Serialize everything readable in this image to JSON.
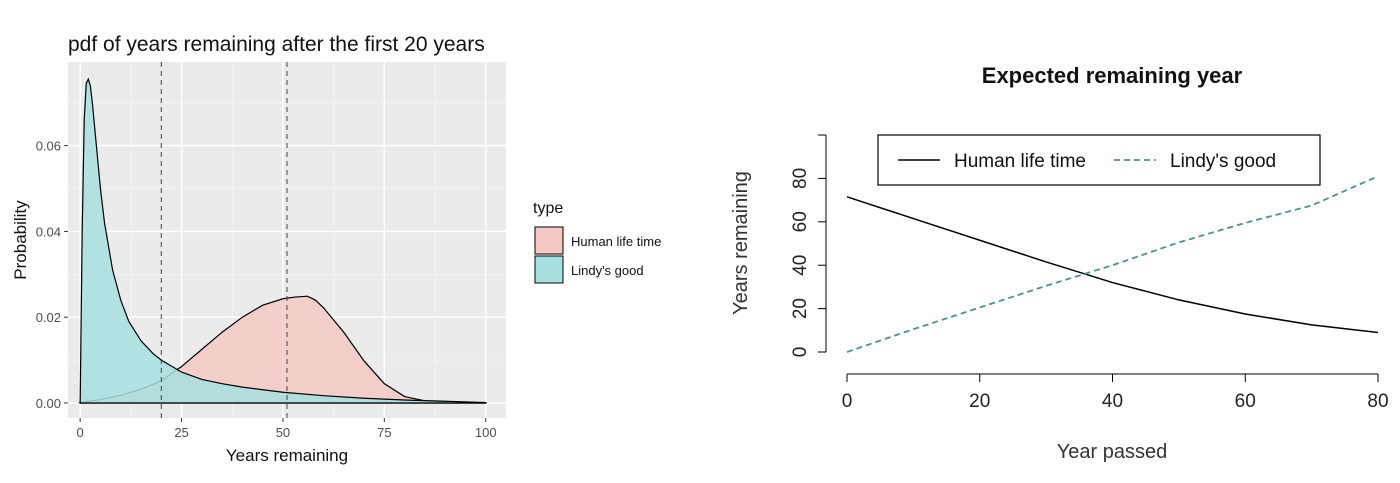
{
  "chart_data": [
    {
      "type": "area",
      "title": "pdf of years remaining after the first 20 years",
      "xlabel": "Years remaining",
      "ylabel": "Probability",
      "xlim": [
        -3,
        105
      ],
      "ylim": [
        -0.0035,
        0.0795
      ],
      "x_ticks": [
        0,
        25,
        50,
        75,
        100
      ],
      "y_ticks": [
        0.0,
        0.02,
        0.04,
        0.06
      ],
      "y_tick_labels": [
        "0.00",
        "0.02",
        "0.04",
        "0.06"
      ],
      "grid": true,
      "legend": {
        "title": "type",
        "placement": "right"
      },
      "vlines": [
        20,
        51
      ],
      "series": [
        {
          "name": "Human life time",
          "color": "#f4c9c4",
          "x": [
            0,
            5,
            10,
            15,
            20,
            25,
            30,
            35,
            40,
            45,
            50,
            53,
            56,
            58,
            60,
            65,
            70,
            75,
            80,
            85,
            90,
            95,
            100
          ],
          "y": [
            0.0001,
            0.0008,
            0.0018,
            0.0032,
            0.0052,
            0.0085,
            0.0125,
            0.0165,
            0.02,
            0.0228,
            0.0243,
            0.0247,
            0.0249,
            0.024,
            0.0222,
            0.0165,
            0.0098,
            0.0045,
            0.0015,
            0.0005,
            0.0002,
            0.0001,
            0.0
          ]
        },
        {
          "name": "Lindy's good",
          "color": "#a7dfdf",
          "x": [
            0,
            0.5,
            1,
            1.5,
            2,
            2.5,
            3,
            4,
            5,
            6,
            8,
            10,
            12,
            15,
            18,
            20,
            25,
            30,
            35,
            40,
            50,
            60,
            70,
            80,
            90,
            100
          ],
          "y": [
            0.0,
            0.04,
            0.066,
            0.0745,
            0.0755,
            0.074,
            0.07,
            0.06,
            0.05,
            0.042,
            0.031,
            0.024,
            0.019,
            0.0145,
            0.0115,
            0.01,
            0.0072,
            0.0055,
            0.0045,
            0.0037,
            0.0025,
            0.0017,
            0.0011,
            0.0007,
            0.0004,
            0.0001
          ]
        }
      ]
    },
    {
      "type": "line",
      "title": "Expected remaining year",
      "xlabel": "Year passed",
      "ylabel": "Years remaining",
      "xlim": [
        0,
        80
      ],
      "ylim": [
        0,
        100
      ],
      "x_ticks": [
        0,
        20,
        40,
        60,
        80
      ],
      "y_ticks": [
        0,
        20,
        40,
        60,
        80
      ],
      "grid": false,
      "legend": {
        "placement": "top"
      },
      "series": [
        {
          "name": "Human life time",
          "color": "#000000",
          "style": "solid",
          "x": [
            0,
            10,
            20,
            30,
            40,
            50,
            60,
            70,
            80
          ],
          "y": [
            71.5,
            61.5,
            51.5,
            41.5,
            32,
            24,
            17.5,
            12.5,
            9
          ]
        },
        {
          "name": "Lindy's good",
          "color": "#4f8f8f",
          "style": "dashed",
          "x": [
            0,
            10,
            20,
            30,
            40,
            50,
            60,
            70,
            80
          ],
          "y": [
            0,
            10.5,
            20.5,
            30.5,
            40,
            50.5,
            59.5,
            67.5,
            81
          ]
        }
      ]
    }
  ]
}
